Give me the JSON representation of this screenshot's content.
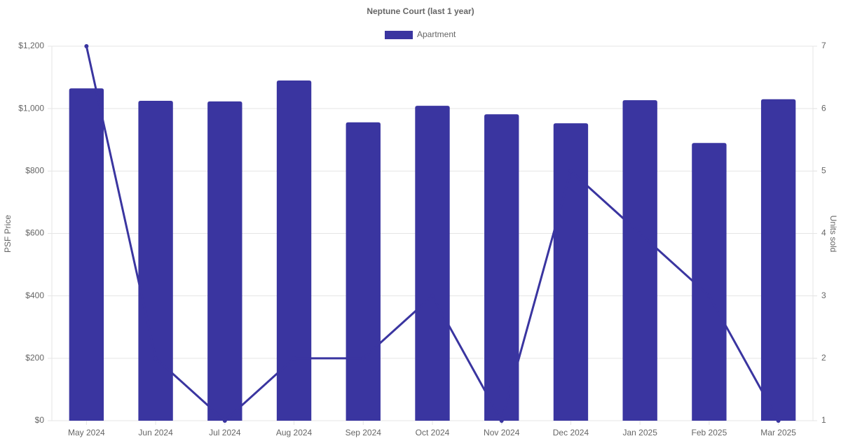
{
  "chart_data": {
    "type": "bar_line",
    "title": "Neptune Court (last 1 year)",
    "y_label": "PSF Price",
    "y2_label": "Units sold",
    "categories": [
      "May 2024",
      "Jun 2024",
      "Jul 2024",
      "Aug 2024",
      "Sep 2024",
      "Oct 2024",
      "Nov 2024",
      "Dec 2024",
      "Jan 2025",
      "Feb 2025",
      "Mar 2025"
    ],
    "series": [
      {
        "name": "Apartment",
        "type": "bar",
        "color": "#3a35a0",
        "values": [
          1065,
          1025,
          1023,
          1090,
          956,
          1009,
          982,
          953,
          1027,
          890,
          1030
        ]
      },
      {
        "type": "line",
        "axis": "y2",
        "color": "#3a35a0",
        "values": [
          7,
          2,
          1,
          2,
          2,
          3,
          1,
          5,
          4,
          3,
          1
        ]
      }
    ],
    "ylim": [
      0,
      1200
    ],
    "yticks": [
      {
        "value": 0,
        "label": "$0"
      },
      {
        "value": 200,
        "label": "$200"
      },
      {
        "value": 400,
        "label": "$400"
      },
      {
        "value": 600,
        "label": "$600"
      },
      {
        "value": 800,
        "label": "$800"
      },
      {
        "value": 1000,
        "label": "$1,000"
      },
      {
        "value": 1200,
        "label": "$1,200"
      }
    ],
    "y2lim": [
      1,
      7
    ],
    "y2ticks": [
      1,
      2,
      3,
      4,
      5,
      6,
      7
    ],
    "grid": true,
    "legend": "top"
  }
}
